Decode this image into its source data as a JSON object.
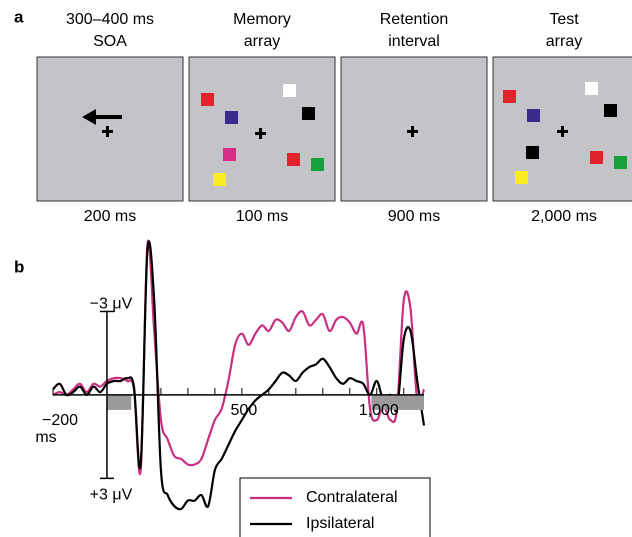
{
  "panel_a": {
    "label": "a",
    "frames": [
      {
        "title": [
          "300–400 ms",
          "SOA"
        ],
        "duration": "200 ms"
      },
      {
        "title": [
          "Memory",
          "array"
        ],
        "duration": "100 ms"
      },
      {
        "title": [
          "Retention",
          "interval"
        ],
        "duration": "900 ms"
      },
      {
        "title": [
          "Test",
          "array"
        ],
        "duration": "2,000 ms"
      }
    ]
  },
  "chart_data": {
    "type": "line",
    "panel_label": "b",
    "x": [
      -200,
      -175,
      -150,
      -125,
      -100,
      -75,
      -50,
      -25,
      0,
      25,
      50,
      75,
      100,
      125,
      150,
      175,
      200,
      225,
      250,
      275,
      300,
      325,
      350,
      375,
      400,
      425,
      450,
      475,
      500,
      525,
      550,
      575,
      600,
      625,
      650,
      675,
      700,
      725,
      750,
      775,
      800,
      825,
      850,
      875,
      900,
      925,
      950,
      975,
      1000,
      1025,
      1050,
      1075,
      1100,
      1125,
      1150,
      1175
    ],
    "xlim": [
      -200,
      1175
    ],
    "xticks": [
      {
        "value": -200,
        "label": "−200"
      },
      500,
      {
        "value": 1000,
        "label": "1,000"
      }
    ],
    "minor_xticks": [
      100,
      200,
      300,
      400,
      600,
      700,
      800,
      900,
      1100
    ],
    "x_unit": "ms",
    "ylim": [
      -6,
      5
    ],
    "y_inverted": true,
    "yticks": [
      {
        "value": -3,
        "label": "−3 μV"
      },
      {
        "value": 3,
        "label": "+3 μV"
      }
    ],
    "shaded": [
      [
        0,
        90
      ],
      [
        980,
        1175
      ]
    ],
    "series": [
      {
        "name": "Contralateral",
        "color": "#c8307f",
        "values": [
          0,
          -0.1,
          0,
          -0.2,
          -0.4,
          -0.1,
          -0.4,
          -0.3,
          -0.5,
          -0.6,
          -0.6,
          -0.5,
          -0.2,
          2.7,
          -5.4,
          -2.3,
          0.9,
          1.6,
          2.2,
          2.3,
          2.5,
          2.5,
          2.3,
          1.6,
          0.9,
          0.5,
          -0.5,
          -1.8,
          -2.2,
          -1.8,
          -2.2,
          -2.5,
          -2.3,
          -2.7,
          -2.6,
          -2.3,
          -2.8,
          -3.0,
          -2.5,
          -2.7,
          -2.9,
          -2.3,
          -2.7,
          -2.8,
          -2.6,
          -2.2,
          -2.5,
          0.5,
          0.9,
          0.4,
          0.9,
          0.5,
          -3.4,
          -3.1,
          0.2,
          -0.2
        ]
      },
      {
        "name": "Ipsilateral",
        "color": "#000000",
        "values": [
          -0.2,
          -0.4,
          0,
          -0.1,
          -0.3,
          0,
          -0.3,
          -0.1,
          -0.4,
          -0.5,
          -0.5,
          -0.6,
          -0.3,
          2.5,
          -5.2,
          -3.4,
          2.7,
          3.6,
          4.0,
          4.1,
          3.8,
          3.8,
          3.6,
          4.0,
          2.7,
          2.3,
          1.8,
          1.3,
          0.9,
          0.5,
          0.2,
          0,
          -0.2,
          -0.5,
          -0.8,
          -0.7,
          -0.5,
          -0.8,
          -1.0,
          -1.1,
          -1.3,
          -1.0,
          -0.6,
          -0.4,
          -0.6,
          -0.5,
          -0.4,
          0,
          -0.5,
          0.2,
          0,
          0.5,
          -2.0,
          -2.3,
          -0.5,
          1.1
        ]
      }
    ]
  }
}
